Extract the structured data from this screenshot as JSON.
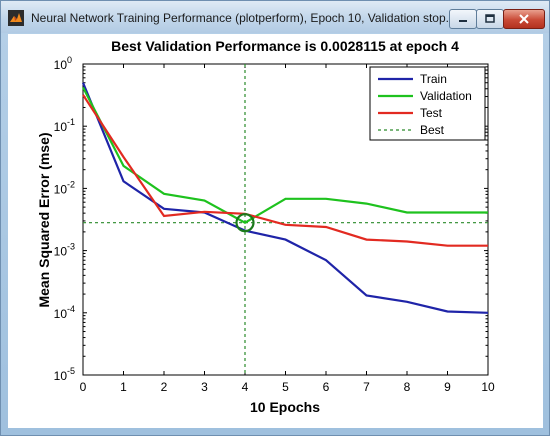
{
  "window": {
    "title": "Neural Network Training Performance (plotperform), Epoch 10, Validation stop."
  },
  "icons": {
    "app": "matlab-icon",
    "minimize": "minimize-icon",
    "maximize": "maximize-icon",
    "close": "close-icon"
  },
  "chart_data": {
    "type": "line",
    "title": "Best Validation Performance is 0.0028115 at epoch 4",
    "xlabel": "10 Epochs",
    "ylabel": "Mean Squared Error  (mse)",
    "xlim": [
      0,
      10
    ],
    "ylim": [
      1e-05,
      1
    ],
    "y_scale": "log",
    "x_ticks": [
      "0",
      "1",
      "2",
      "3",
      "4",
      "5",
      "6",
      "7",
      "8",
      "9",
      "10"
    ],
    "y_ticks": [
      {
        "value": 1,
        "base": "10",
        "exp": "0"
      },
      {
        "value": 0.1,
        "base": "10",
        "exp": "-1"
      },
      {
        "value": 0.01,
        "base": "10",
        "exp": "-2"
      },
      {
        "value": 0.001,
        "base": "10",
        "exp": "-3"
      },
      {
        "value": 0.0001,
        "base": "10",
        "exp": "-4"
      },
      {
        "value": 1e-05,
        "base": "10",
        "exp": "-5"
      }
    ],
    "x": [
      0,
      1,
      2,
      3,
      4,
      5,
      6,
      7,
      8,
      9,
      10
    ],
    "series": [
      {
        "name": "Train",
        "color": "#1f24a8",
        "values": [
          0.5,
          0.013,
          0.0047,
          0.0041,
          0.0021,
          0.0015,
          0.0007,
          0.00019,
          0.00015,
          0.000105,
          0.0001
        ]
      },
      {
        "name": "Validation",
        "color": "#1ec21e",
        "values": [
          0.42,
          0.023,
          0.0082,
          0.0064,
          0.0028115,
          0.0068,
          0.0068,
          0.0057,
          0.0041,
          0.0041,
          0.0041
        ]
      },
      {
        "name": "Test",
        "color": "#e22a21",
        "values": [
          0.32,
          0.032,
          0.0036,
          0.0042,
          0.0039,
          0.0026,
          0.0024,
          0.0015,
          0.0014,
          0.0012,
          0.0012
        ]
      }
    ],
    "best": {
      "name": "Best",
      "epoch": 4,
      "value": 0.0028115,
      "color": "#2a8a2a"
    },
    "legend_position": "top-right",
    "grid": false
  }
}
